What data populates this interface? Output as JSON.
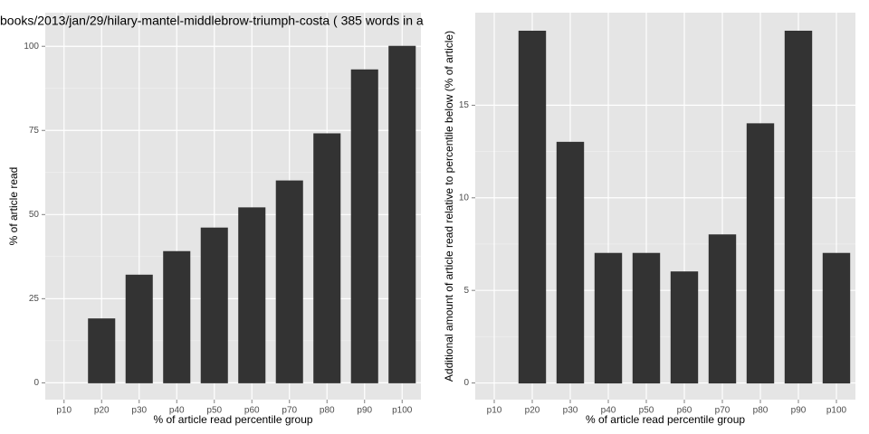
{
  "chart_data": [
    {
      "type": "bar",
      "title": "books/2013/jan/29/hilary-mantel-middlebrow-triumph-costa ( 385 words in a",
      "x_label": "% of article read percentile group",
      "y_label": "% of article read",
      "categories": [
        "p10",
        "p20",
        "p30",
        "p40",
        "p50",
        "p60",
        "p70",
        "p80",
        "p90",
        "p100"
      ],
      "values": [
        0,
        19,
        32,
        39,
        46,
        52,
        60,
        74,
        93,
        100
      ],
      "color": "#333333",
      "ylim": [
        -5,
        110
      ],
      "yticks": [
        0,
        25,
        50,
        75,
        100
      ],
      "grid": true
    },
    {
      "type": "bar",
      "x_label": "% of article read percentile group",
      "y_label": "Additional amount of article read relative to percentile below (% of article)",
      "categories": [
        "p10",
        "p20",
        "p30",
        "p40",
        "p50",
        "p60",
        "p70",
        "p80",
        "p90",
        "p100"
      ],
      "values": [
        0,
        19,
        13,
        7,
        7,
        6,
        8,
        14,
        19,
        7
      ],
      "color": "#333333",
      "ylim": [
        -0.9,
        20
      ],
      "yticks": [
        0,
        5,
        10,
        15
      ],
      "grid": true
    }
  ]
}
